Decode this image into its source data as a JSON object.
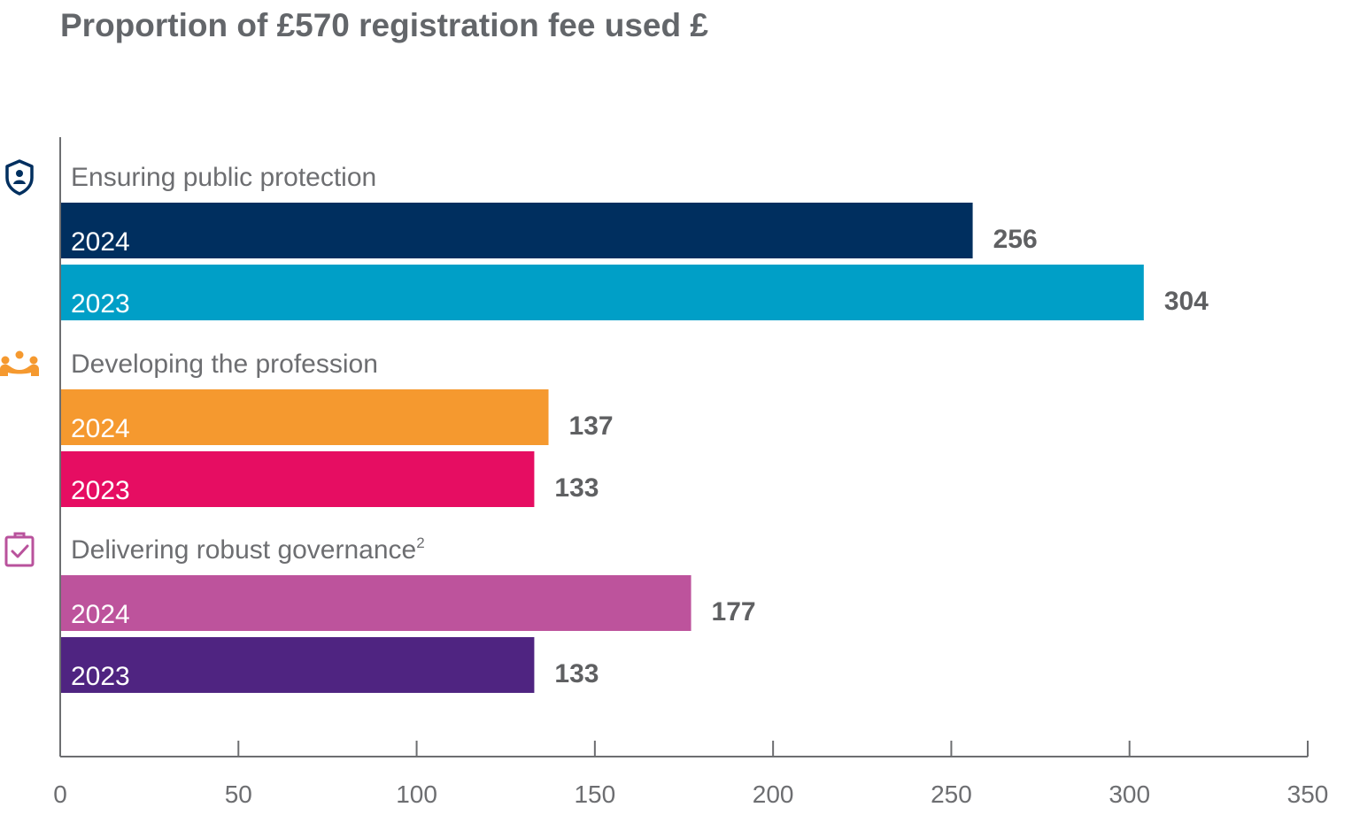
{
  "chart_data": {
    "type": "bar",
    "orientation": "horizontal",
    "title": "Proportion of £570 registration fee used £",
    "xlabel": "",
    "ylabel": "",
    "xlim": [
      0,
      350
    ],
    "x_ticks": [
      "0",
      "50",
      "100",
      "150",
      "200",
      "250",
      "300",
      "350"
    ],
    "grid": false,
    "legend": "none",
    "groups": [
      {
        "category": "Ensuring public protection",
        "superscript": "",
        "icon": "shield-person-icon",
        "icon_color": "#002f5f",
        "bars": [
          {
            "year": "2024",
            "value": 256,
            "color": "#002f5f"
          },
          {
            "year": "2023",
            "value": 304,
            "color": "#009fc7"
          }
        ]
      },
      {
        "category": "Developing the profession",
        "superscript": "",
        "icon": "people-group-icon",
        "icon_color": "#f5992f",
        "bars": [
          {
            "year": "2024",
            "value": 137,
            "color": "#f5992f"
          },
          {
            "year": "2023",
            "value": 133,
            "color": "#e60d62"
          }
        ]
      },
      {
        "category": "Delivering robust governance",
        "superscript": "2",
        "icon": "clipboard-check-icon",
        "icon_color": "#b9529c",
        "bars": [
          {
            "year": "2024",
            "value": 177,
            "color": "#bd539c"
          },
          {
            "year": "2023",
            "value": 133,
            "color": "#4f2481"
          }
        ]
      }
    ]
  },
  "colors": {
    "axis": "#6d6e71",
    "text": "#6d6e71",
    "title": "#63666a"
  }
}
